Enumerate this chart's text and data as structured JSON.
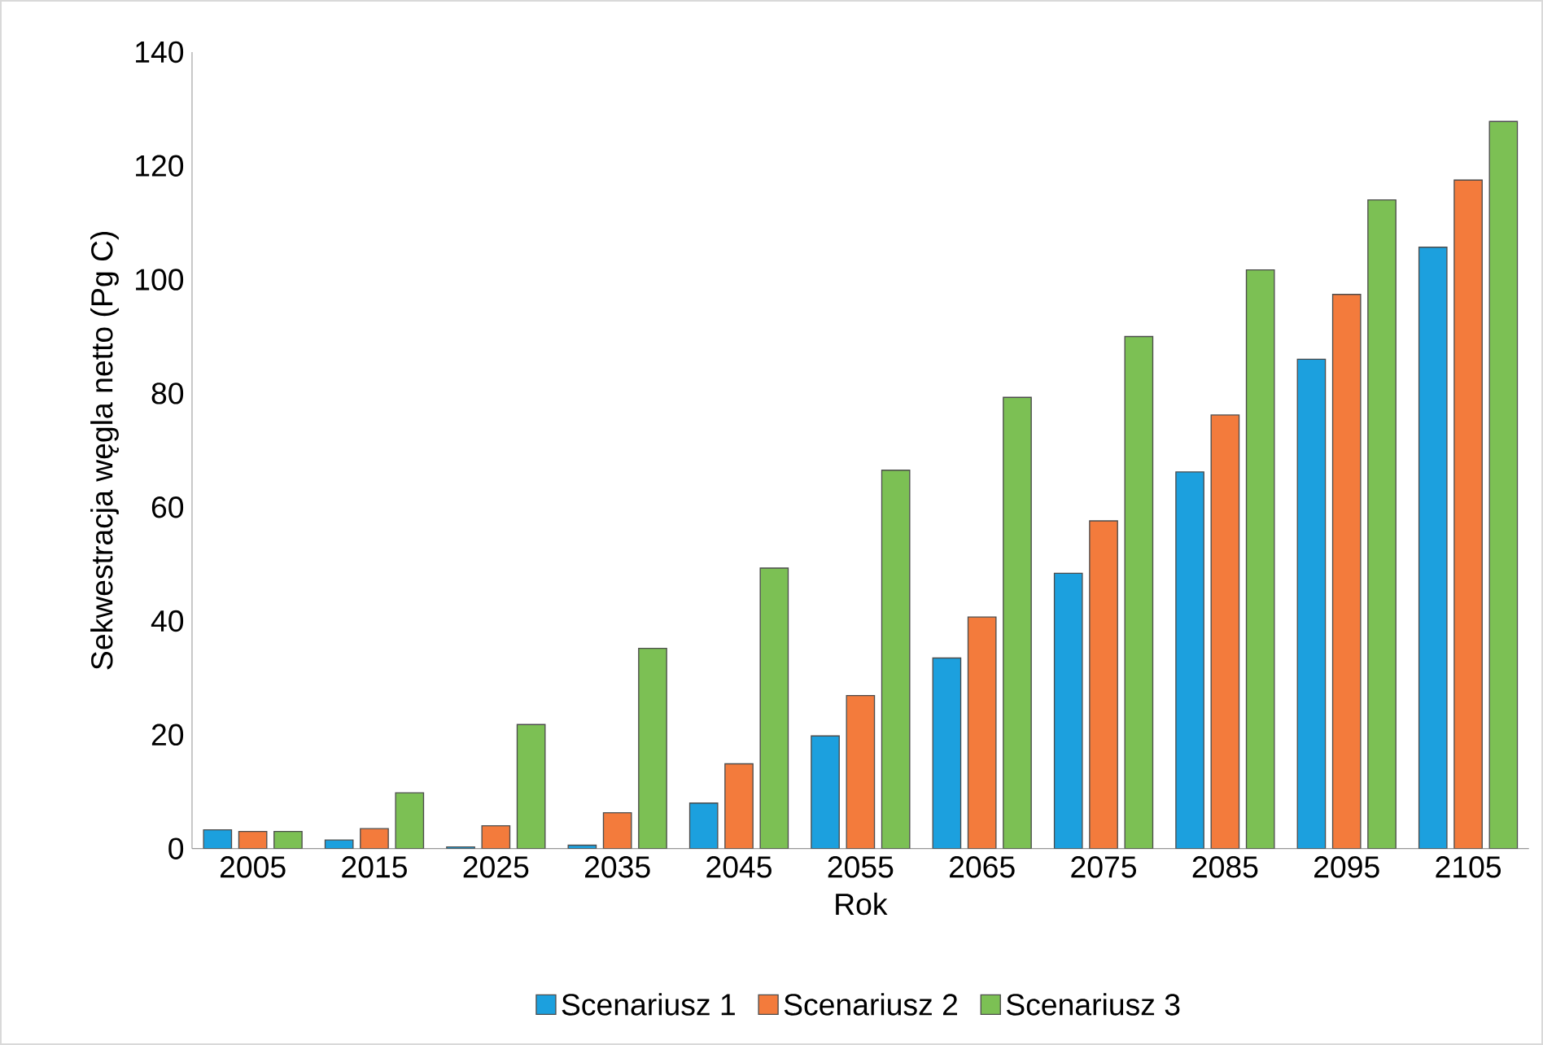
{
  "chart_data": {
    "type": "bar",
    "xlabel": "Rok",
    "ylabel": "Sekwestracja węgla netto (Pg C)",
    "categories": [
      "2005",
      "2015",
      "2025",
      "2035",
      "2045",
      "2055",
      "2065",
      "2075",
      "2085",
      "2095",
      "2105"
    ],
    "series": [
      {
        "name": "Scenariusz 1",
        "color": "#1ca0de",
        "values": [
          3.3,
          1.5,
          0.3,
          0.6,
          8,
          19.8,
          33.5,
          48.4,
          66.2,
          86,
          105.7
        ]
      },
      {
        "name": "Scenariusz 2",
        "color": "#f37b3c",
        "values": [
          3.0,
          3.5,
          4.0,
          6.3,
          14.9,
          26.9,
          40.7,
          57.6,
          76.2,
          97.4,
          117.5
        ]
      },
      {
        "name": "Scenariusz 3",
        "color": "#7cc054",
        "values": [
          3.0,
          9.8,
          21.8,
          35.2,
          49.3,
          66.5,
          79.3,
          90,
          101.7,
          114,
          127.8
        ]
      }
    ],
    "ylim": [
      0,
      140
    ],
    "yticks": [
      0,
      20,
      40,
      60,
      80,
      100,
      120,
      140
    ],
    "legend": "bottom"
  }
}
